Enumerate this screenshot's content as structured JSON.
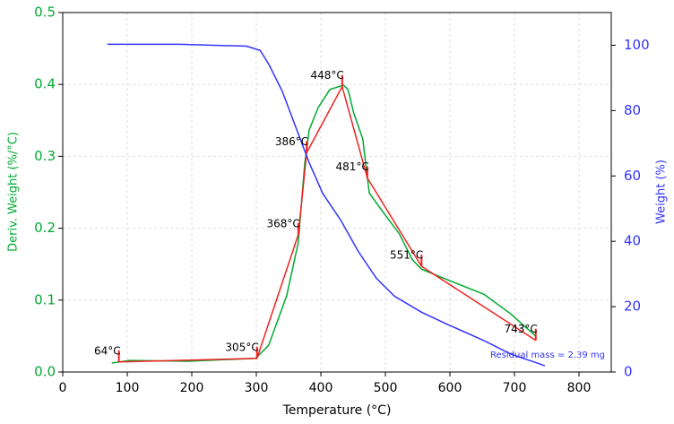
{
  "chart_data": {
    "type": "line",
    "xlabel": "Temperature (°C)",
    "ylabel": "Deriv. Weight (%/°C)",
    "y2label": "Weight (%)",
    "xlim": [
      0,
      850
    ],
    "xticks": [
      0,
      100,
      200,
      300,
      400,
      500,
      600,
      700,
      800
    ],
    "ylim": [
      0,
      0.5
    ],
    "yticks": [
      {
        "value": 0,
        "label": "0.0"
      },
      0.1,
      0.2,
      0.3,
      0.4,
      0.5
    ],
    "y2lim": [
      0,
      110
    ],
    "y2ticks": [
      0,
      20,
      40,
      60,
      80,
      100
    ],
    "grid": true,
    "series": [
      {
        "color": "#00aa33",
        "axis": "y",
        "x": [
          76,
          104,
          194,
          299,
          319,
          347,
          365,
          375,
          382,
          396,
          414,
          435,
          442,
          451,
          465,
          475,
          500,
          521,
          542,
          556,
          597,
          653,
          694,
          733
        ],
        "values": [
          0.0125,
          0.016,
          0.015,
          0.019,
          0.037,
          0.106,
          0.18,
          0.29,
          0.337,
          0.368,
          0.393,
          0.399,
          0.393,
          0.36,
          0.324,
          0.249,
          0.218,
          0.193,
          0.156,
          0.143,
          0.128,
          0.108,
          0.081,
          0.05
        ]
      },
      {
        "color": "#ee2222",
        "axis": "y",
        "x": [
          87,
          301,
          365,
          378,
          433,
          472,
          556,
          733
        ],
        "values": [
          0.014,
          0.019,
          0.191,
          0.305,
          0.397,
          0.27,
          0.147,
          0.044
        ]
      },
      {
        "color": "#3333ff",
        "axis": "y2",
        "x": [
          69,
          181,
          285,
          306,
          319,
          340,
          361,
          382,
          403,
          431,
          458,
          486,
          514,
          556,
          597,
          653,
          694,
          736,
          747
        ],
        "values": [
          100.3,
          100.3,
          99.7,
          98.4,
          94.3,
          86,
          75,
          64,
          54.6,
          46.4,
          36.9,
          28.7,
          23.2,
          18.3,
          14.5,
          9.6,
          5.5,
          2.7,
          1.9
        ]
      }
    ],
    "annotations": [
      {
        "text": "64°C",
        "x": 87,
        "y": 0.014
      },
      {
        "text": "305°C",
        "x": 301,
        "y": 0.019
      },
      {
        "text": "368°C",
        "x": 365,
        "y": 0.191
      },
      {
        "text": "386°C",
        "x": 378,
        "y": 0.305
      },
      {
        "text": "448°C",
        "x": 433,
        "y": 0.397
      },
      {
        "text": "481°C",
        "x": 472,
        "y": 0.27
      },
      {
        "text": "551°C",
        "x": 556,
        "y": 0.147
      },
      {
        "text": "743°C",
        "x": 733,
        "y": 0.044
      }
    ],
    "note": "Residual mass = 2.39 mg"
  }
}
